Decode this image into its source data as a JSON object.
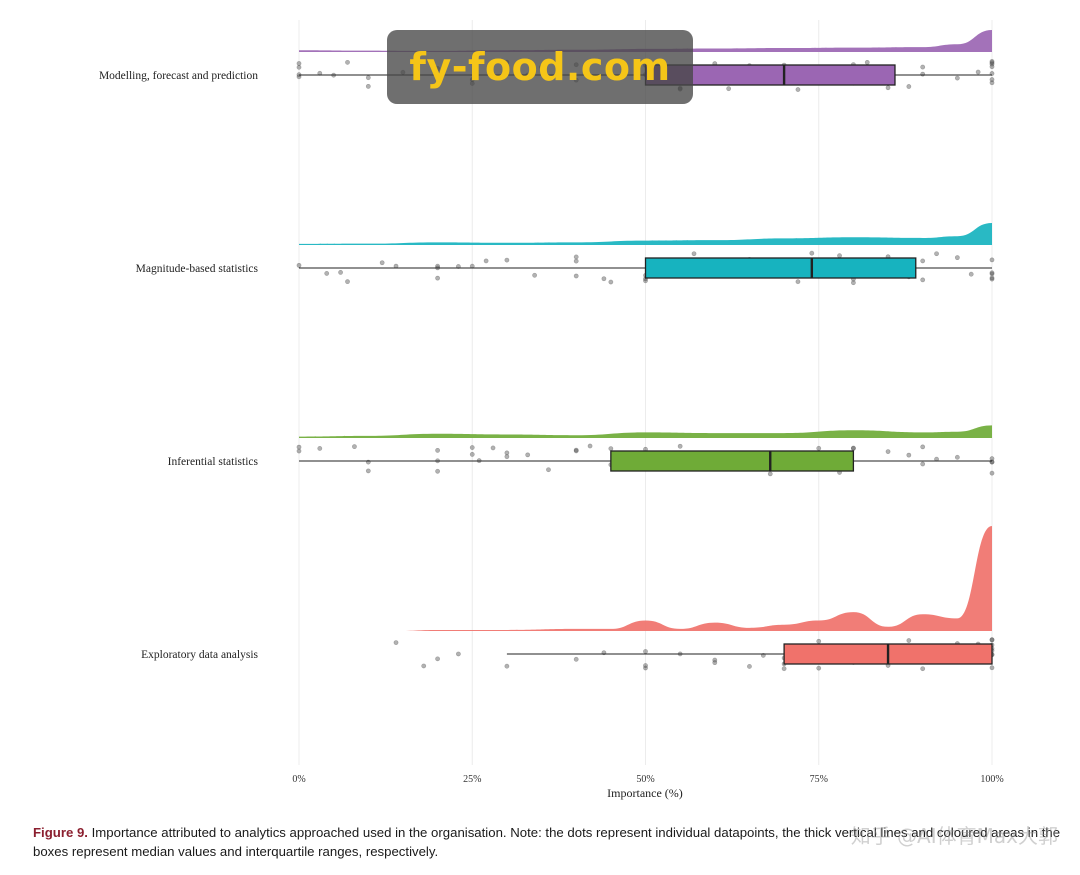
{
  "watermark": {
    "text": "fy-food.com"
  },
  "caption": {
    "figure_label": "Figure 9.",
    "text": " Importance attributed to analytics approached used in the organisation. Note: the dots represent individual datapoints, the thick vertical lines and coloured areas in the boxes represent median values and interquartile ranges, respectively."
  },
  "corner_watermark": {
    "text": "知乎 @AI体育Max大郭"
  },
  "chart_data": {
    "type": "raincloud",
    "xlabel": "Importance (%)",
    "xlim": [
      0,
      100
    ],
    "xticks": [
      0,
      25,
      50,
      75,
      100
    ],
    "xtick_labels": [
      "0%",
      "25%",
      "50%",
      "75%",
      "100%"
    ],
    "grid": "vertical",
    "series": [
      {
        "name": "Modelling, forecast and prediction",
        "color": "#9b66b3",
        "whisker_low": 0,
        "q1": 50,
        "median": 70,
        "q3": 86,
        "whisker_high": 100,
        "density": [
          [
            0,
            0.08
          ],
          [
            10,
            0.06
          ],
          [
            20,
            0.05
          ],
          [
            30,
            0.08
          ],
          [
            40,
            0.1
          ],
          [
            50,
            0.14
          ],
          [
            60,
            0.16
          ],
          [
            70,
            0.18
          ],
          [
            80,
            0.2
          ],
          [
            90,
            0.22
          ],
          [
            95,
            0.35
          ],
          [
            100,
            1.0
          ]
        ],
        "points": [
          0,
          0,
          0,
          0,
          3,
          5,
          7,
          10,
          10,
          15,
          20,
          25,
          25,
          30,
          33,
          35,
          40,
          40,
          45,
          50,
          50,
          50,
          55,
          55,
          60,
          60,
          62,
          65,
          65,
          68,
          70,
          70,
          70,
          72,
          75,
          75,
          75,
          78,
          80,
          80,
          80,
          80,
          82,
          85,
          85,
          88,
          90,
          90,
          95,
          98,
          100,
          100,
          100,
          100,
          100,
          100,
          100
        ]
      },
      {
        "name": "Magnitude-based statistics",
        "color": "#17b3bf",
        "whisker_low": 0,
        "q1": 50,
        "median": 74,
        "q3": 89,
        "whisker_high": 100,
        "density": [
          [
            0,
            0.05
          ],
          [
            10,
            0.06
          ],
          [
            20,
            0.12
          ],
          [
            30,
            0.1
          ],
          [
            40,
            0.12
          ],
          [
            50,
            0.2
          ],
          [
            60,
            0.22
          ],
          [
            70,
            0.3
          ],
          [
            80,
            0.35
          ],
          [
            90,
            0.32
          ],
          [
            95,
            0.4
          ],
          [
            100,
            1.0
          ]
        ],
        "points": [
          0,
          4,
          6,
          7,
          12,
          14,
          20,
          20,
          20,
          23,
          25,
          27,
          30,
          34,
          40,
          40,
          40,
          44,
          45,
          50,
          50,
          50,
          52,
          55,
          57,
          60,
          62,
          65,
          65,
          67,
          70,
          70,
          72,
          74,
          75,
          75,
          77,
          78,
          80,
          80,
          80,
          82,
          85,
          85,
          88,
          90,
          90,
          92,
          95,
          97,
          100,
          100,
          100,
          100,
          100
        ]
      },
      {
        "name": "Inferential statistics",
        "color": "#6fab37",
        "whisker_low": 0,
        "q1": 45,
        "median": 68,
        "q3": 80,
        "whisker_high": 100,
        "density": [
          [
            0,
            0.1
          ],
          [
            10,
            0.15
          ],
          [
            20,
            0.3
          ],
          [
            30,
            0.25
          ],
          [
            40,
            0.2
          ],
          [
            50,
            0.4
          ],
          [
            60,
            0.35
          ],
          [
            70,
            0.35
          ],
          [
            80,
            0.55
          ],
          [
            90,
            0.4
          ],
          [
            95,
            0.45
          ],
          [
            100,
            0.9
          ]
        ],
        "points": [
          0,
          0,
          3,
          8,
          10,
          10,
          20,
          20,
          20,
          25,
          25,
          26,
          28,
          30,
          30,
          33,
          36,
          40,
          40,
          42,
          45,
          45,
          50,
          50,
          50,
          52,
          55,
          60,
          60,
          62,
          65,
          68,
          70,
          70,
          72,
          75,
          75,
          78,
          80,
          80,
          85,
          88,
          90,
          90,
          92,
          95,
          100,
          100,
          100,
          100
        ]
      },
      {
        "name": "Exploratory data analysis",
        "color": "#f0726b",
        "whisker_low": 30,
        "q1": 70,
        "median": 85,
        "q3": 100,
        "whisker_high": 100,
        "density": [
          [
            14,
            0.0
          ],
          [
            20,
            0.01
          ],
          [
            30,
            0.01
          ],
          [
            40,
            0.02
          ],
          [
            45,
            0.02
          ],
          [
            50,
            0.1
          ],
          [
            55,
            0.02
          ],
          [
            60,
            0.08
          ],
          [
            65,
            0.03
          ],
          [
            70,
            0.06
          ],
          [
            75,
            0.1
          ],
          [
            80,
            0.18
          ],
          [
            85,
            0.04
          ],
          [
            90,
            0.16
          ],
          [
            95,
            0.12
          ],
          [
            100,
            1.0
          ]
        ],
        "points": [
          14,
          18,
          20,
          23,
          30,
          40,
          44,
          50,
          50,
          50,
          55,
          60,
          60,
          65,
          67,
          70,
          70,
          70,
          72,
          75,
          75,
          77,
          80,
          80,
          80,
          80,
          82,
          85,
          85,
          85,
          88,
          90,
          90,
          90,
          92,
          95,
          95,
          98,
          100,
          100,
          100,
          100,
          100,
          100,
          100,
          100
        ]
      }
    ]
  }
}
